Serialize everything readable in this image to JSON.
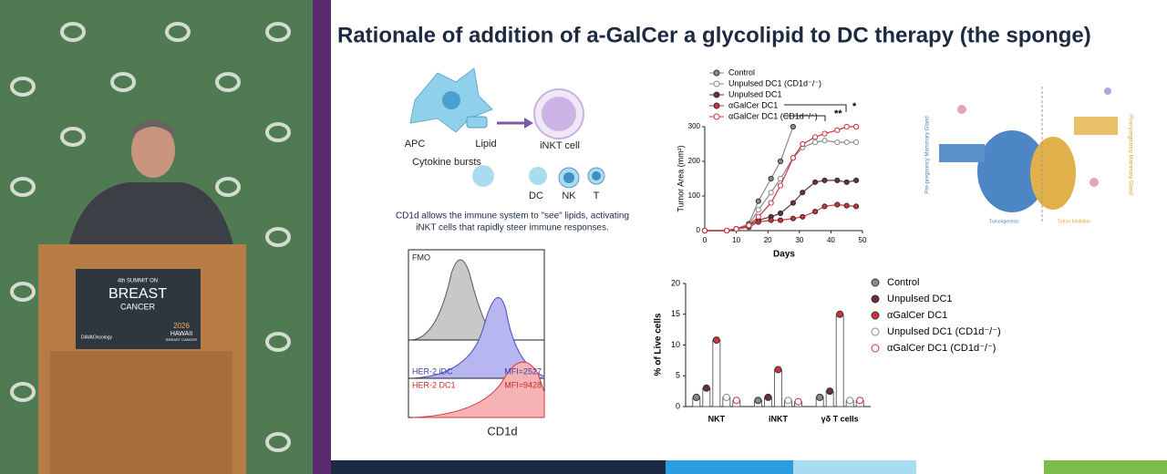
{
  "podium": {
    "edition": "4th SUMMIT ON",
    "line1": "BREAST",
    "line2": "CANCER",
    "brand": "DAVAOncology",
    "year": "2026",
    "place": "HAWAII",
    "event": "BREAST CANCER"
  },
  "slide": {
    "title": "Rationale of addition of a-GalCer a glycolipid to DC therapy (the sponge)",
    "diagram": {
      "apc": "APC",
      "lipid": "Lipid",
      "inkt": "iNKT cell",
      "cytokine": "Cytokine bursts",
      "dc": "DC",
      "nk": "NK",
      "t": "T",
      "caption_1": "CD1d allows the immune system to \"see\" lipids, activating",
      "caption_2": "iNKT cells that rapidly steer immune responses."
    },
    "flow": {
      "fmo": "FMO",
      "idc": "HER-2 iDC",
      "idc_mfi": "MFI=2527",
      "dc1": "HER-2 DC1",
      "dc1_mfi": "MFI=9428",
      "xlabel": "CD1d"
    },
    "schematic": {
      "left": "Pre-pregnancy Mammary Gland",
      "right": "Post-pregnancy Mammary Gland",
      "bottom_left": "Tumorigenesis",
      "bottom_right": "Tumor Inhibition"
    },
    "tumor_chart": {
      "type": "line",
      "ylabel": "Tumor Area (mm²)",
      "xlabel": "Days",
      "xlim": [
        0,
        50
      ],
      "xticks": [
        0,
        10,
        20,
        30,
        40,
        50
      ],
      "ylim": [
        0,
        300
      ],
      "yticks": [
        0,
        100,
        200,
        300
      ],
      "x": [
        0,
        7,
        10,
        14,
        17,
        21,
        24,
        28,
        31,
        35,
        38,
        42,
        45,
        48
      ],
      "series": [
        {
          "name": "Control",
          "color": "#8a8a8a",
          "filled": true,
          "values": [
            0,
            0,
            5,
            20,
            85,
            150,
            200,
            300,
            null,
            null,
            null,
            null,
            null,
            null
          ]
        },
        {
          "name": "Unpulsed DC1 (CD1d⁻/⁻)",
          "color": "#8a8a8a",
          "filled": false,
          "values": [
            0,
            0,
            5,
            15,
            60,
            110,
            150,
            210,
            240,
            255,
            260,
            255,
            255,
            255
          ]
        },
        {
          "name": "Unpulsed DC1",
          "color": "#6b2e36",
          "filled": true,
          "values": [
            0,
            0,
            5,
            15,
            30,
            40,
            50,
            80,
            110,
            140,
            145,
            145,
            140,
            145
          ]
        },
        {
          "name": "αGalCer DC1",
          "color": "#d1303d",
          "filled": true,
          "values": [
            0,
            0,
            5,
            10,
            25,
            30,
            30,
            35,
            40,
            55,
            70,
            75,
            72,
            70
          ]
        },
        {
          "name": "αGalCer DC1 (CD1d⁻/⁻)",
          "color": "#d1303d",
          "filled": false,
          "values": [
            0,
            0,
            5,
            15,
            40,
            80,
            130,
            210,
            250,
            270,
            280,
            290,
            300,
            300
          ]
        }
      ],
      "sig_1": "**",
      "sig_2": "*"
    },
    "cells_chart": {
      "type": "bar",
      "ylabel": "% of Live cells",
      "categories": [
        "NKT",
        "iNKT",
        "γδ T cells"
      ],
      "ylim": [
        0,
        20
      ],
      "yticks": [
        0,
        5,
        10,
        15,
        20
      ],
      "series": [
        {
          "name": "Control",
          "color": "#8a8a8a",
          "filled": true,
          "values": [
            1.5,
            1.0,
            1.5
          ]
        },
        {
          "name": "Unpulsed DC1",
          "color": "#6b2e36",
          "filled": true,
          "values": [
            3.0,
            1.5,
            2.5
          ]
        },
        {
          "name": "αGalCer DC1",
          "color": "#d1303d",
          "filled": true,
          "values": [
            10.8,
            6.0,
            15.0
          ]
        },
        {
          "name": "Unpulsed DC1 (CD1d⁻/⁻)",
          "color": "#8a8a8a",
          "filled": false,
          "values": [
            1.5,
            1.0,
            1.0
          ]
        },
        {
          "name": "αGalCer DC1 (CD1d⁻/⁻)",
          "color": "#d1303d",
          "filled": false,
          "values": [
            1.0,
            0.8,
            1.0
          ]
        }
      ]
    }
  }
}
